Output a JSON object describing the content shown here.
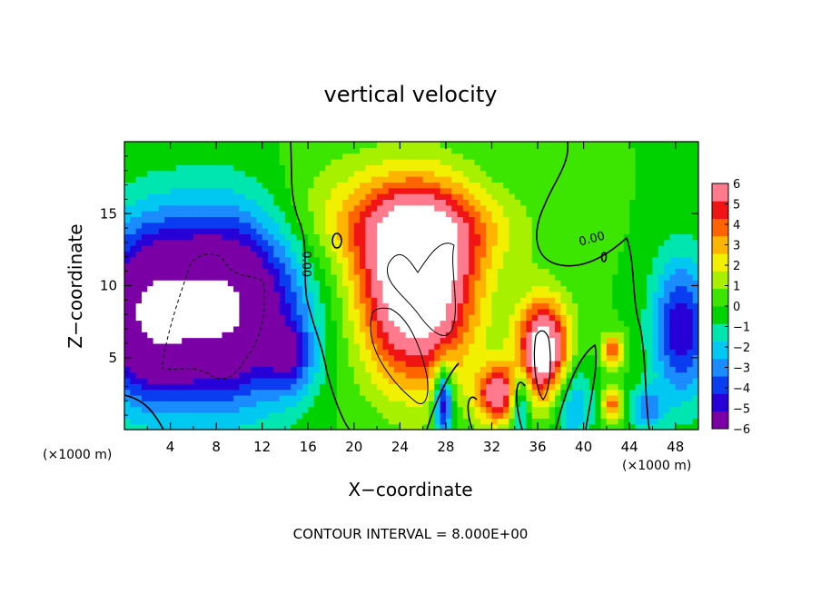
{
  "chart_data": {
    "type": "heatmap",
    "title": "vertical velocity",
    "xlabel": "X−coordinate",
    "ylabel": "Z−coordinate",
    "x_unit_label_left": "(×1000 m)",
    "x_unit_label_right": "(×1000 m)",
    "footer": "CONTOUR INTERVAL = 8.000E+00",
    "xlim": [
      0,
      50
    ],
    "ylim": [
      0,
      20
    ],
    "x_ticks": [
      4,
      8,
      12,
      16,
      20,
      24,
      28,
      32,
      36,
      40,
      44,
      48
    ],
    "x_tick_labels": [
      "4",
      "8",
      "12",
      "16",
      "20",
      "24",
      "28",
      "32",
      "36",
      "40",
      "44",
      "48"
    ],
    "y_ticks": [
      5,
      10,
      15
    ],
    "y_tick_labels": [
      "5",
      "10",
      "15"
    ],
    "colorbar": {
      "min": -6,
      "max": 6,
      "ticks": [
        6,
        5,
        4,
        3,
        2,
        1,
        0,
        -1,
        -2,
        -3,
        -4,
        -5,
        -6
      ],
      "tick_labels": [
        "6",
        "5",
        "4",
        "3",
        "2",
        "1",
        "0",
        "−1",
        "−2",
        "−3",
        "−4",
        "−5",
        "−6"
      ],
      "colors": [
        "#7a00a6",
        "#2600d6",
        "#0a3cf0",
        "#1a8cff",
        "#00c8f0",
        "#00e6b0",
        "#00d200",
        "#3ce600",
        "#a6f000",
        "#f0f000",
        "#ffb400",
        "#ff6400",
        "#f01414",
        "#ff7a8c"
      ]
    },
    "contour_labels": [
      {
        "text": "0.00",
        "x": 15.5,
        "y": 11.5,
        "rotate": 90
      },
      {
        "text": "0.00",
        "x": 40.8,
        "y": 13.0,
        "rotate": -15
      }
    ],
    "features": [
      {
        "kind": "downdraft",
        "x": 8.5,
        "z": 8.5,
        "sx": 6.5,
        "sz": 6.5,
        "amp": -9
      },
      {
        "kind": "downdraft",
        "x": 1.5,
        "z": 8.0,
        "sx": 4.0,
        "sz": 6.0,
        "amp": -6
      },
      {
        "kind": "downdraft",
        "x": 48.5,
        "z": 7.0,
        "sx": 2.5,
        "sz": 5.0,
        "amp": -5
      },
      {
        "kind": "downdraft",
        "x": 14.5,
        "z": 5.0,
        "sx": 2.0,
        "sz": 2.5,
        "amp": -3
      },
      {
        "kind": "updraft",
        "x": 25.5,
        "z": 10.0,
        "sx": 5.0,
        "sz": 6.5,
        "amp": 9
      },
      {
        "kind": "updraft",
        "x": 26.0,
        "z": 14.0,
        "sx": 8.0,
        "sz": 3.0,
        "amp": 3
      },
      {
        "kind": "updraft",
        "x": 36.5,
        "z": 5.5,
        "sx": 2.3,
        "sz": 3.5,
        "amp": 8
      },
      {
        "kind": "updraft",
        "x": 32.5,
        "z": 2.5,
        "sx": 1.8,
        "sz": 2.0,
        "amp": 6
      },
      {
        "kind": "updraft",
        "x": 42.5,
        "z": 5.5,
        "sx": 1.0,
        "sz": 1.2,
        "amp": 4
      },
      {
        "kind": "updraft",
        "x": 42.5,
        "z": 1.8,
        "sx": 0.9,
        "sz": 1.2,
        "amp": 4
      },
      {
        "kind": "downdraft",
        "x": 27.8,
        "z": 2.0,
        "sx": 0.8,
        "sz": 2.5,
        "amp": -6
      },
      {
        "kind": "downdraft",
        "x": 34.5,
        "z": 2.0,
        "sx": 0.9,
        "sz": 2.5,
        "amp": -4
      },
      {
        "kind": "downdraft",
        "x": 39.0,
        "z": 2.0,
        "sx": 1.8,
        "sz": 3.0,
        "amp": -3
      },
      {
        "kind": "downdraft",
        "x": 45.5,
        "z": 1.5,
        "sx": 1.5,
        "sz": 1.5,
        "amp": -3
      },
      {
        "kind": "updraft",
        "x": 18.0,
        "z": 16.0,
        "sx": 6.0,
        "sz": 4.0,
        "amp": 1
      }
    ]
  }
}
